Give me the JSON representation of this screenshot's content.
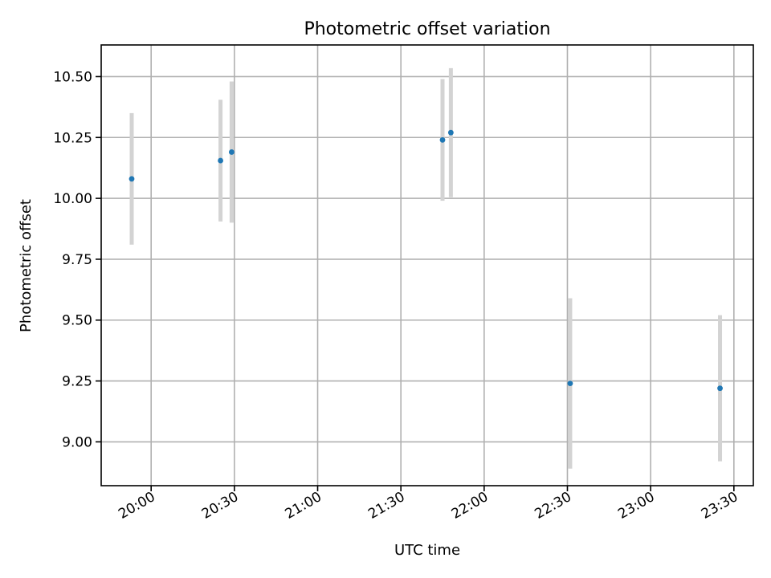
{
  "chart_data": {
    "type": "scatter",
    "title": "Photometric offset variation",
    "xlabel": "UTC time",
    "ylabel": "Photometric offset",
    "x_axis": {
      "kind": "time",
      "range": [
        "19:42",
        "23:37"
      ],
      "ticks": [
        "20:00",
        "20:30",
        "21:00",
        "21:30",
        "22:00",
        "22:30",
        "23:00",
        "23:30"
      ]
    },
    "y_axis": {
      "range": [
        8.82,
        10.63
      ],
      "ticks": [
        "9.00",
        "9.25",
        "9.50",
        "9.75",
        "10.00",
        "10.25",
        "10.50"
      ]
    },
    "grid": true,
    "series": [
      {
        "marker_color": "#1f77b4",
        "errorbar_color": "#d3d3d3",
        "points": [
          {
            "x": "19:53",
            "y": 10.08,
            "err": 0.27
          },
          {
            "x": "20:25",
            "y": 10.155,
            "err": 0.25
          },
          {
            "x": "20:29",
            "y": 10.19,
            "err": 0.29
          },
          {
            "x": "21:45",
            "y": 10.24,
            "err": 0.25
          },
          {
            "x": "21:48",
            "y": 10.27,
            "err": 0.265
          },
          {
            "x": "22:31",
            "y": 9.24,
            "err": 0.35
          },
          {
            "x": "23:25",
            "y": 9.22,
            "err": 0.3
          }
        ]
      }
    ]
  }
}
